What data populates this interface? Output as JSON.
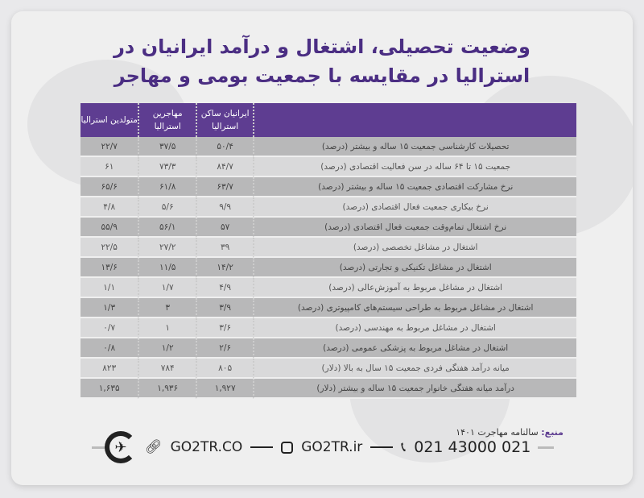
{
  "title": {
    "line1": "وضعیت تحصیلی، اشتغال و درآمد ایرانیان در",
    "line2": "استرالیا در مقایسه با جمعیت بومی و مهاجر"
  },
  "table": {
    "headers": [
      "",
      "ایرانیان ساکن استرالیا",
      "مهاجرین استرالیا",
      "متولدین استرالیا"
    ],
    "rows": [
      [
        "تحصیلات کارشناسی جمعیت ۱۵ ساله و بیشتر (درصد)",
        "۵۰/۴",
        "۳۷/۵",
        "۲۲/۷"
      ],
      [
        "جمعیت ۱۵ تا ۶۴ ساله در سن فعالیت اقتصادی (درصد)",
        "۸۴/۷",
        "۷۳/۳",
        "۶۱"
      ],
      [
        "نرخ مشارکت اقتصادی جمعیت ۱۵ ساله و بیشتر (درصد)",
        "۶۳/۷",
        "۶۱/۸",
        "۶۵/۶"
      ],
      [
        "نرخ بیکاری جمعیت فعال اقتصادی (درصد)",
        "۹/۹",
        "۵/۶",
        "۴/۸"
      ],
      [
        "نرخ اشتغال تمام‌وقت جمعیت فعال اقتصادی (درصد)",
        "۵۷",
        "۵۶/۱",
        "۵۵/۹"
      ],
      [
        "اشتغال در مشاغل تخصصی (درصد)",
        "۳۹",
        "۲۷/۲",
        "۲۲/۵"
      ],
      [
        "اشتغال در مشاغل تکنیکی و تجارتی (درصد)",
        "۱۴/۲",
        "۱۱/۵",
        "۱۳/۶"
      ],
      [
        "اشتغال در مشاغل مربوط به آموزش‌عالی (درصد)",
        "۴/۹",
        "۱/۷",
        "۱/۱"
      ],
      [
        "اشتغال در مشاغل مربوط به طراحی سیستم‌های کامپیوتری (درصد)",
        "۳/۹",
        "۳",
        "۱/۳"
      ],
      [
        "اشتغال در مشاغل مربوط به مهندسی (درصد)",
        "۳/۶",
        "۱",
        "۰/۷"
      ],
      [
        "اشتغال در مشاغل مربوط به پزشکی عمومی (درصد)",
        "۲/۶",
        "۱/۲",
        "۰/۸"
      ],
      [
        "میانه درآمد هفتگی فردی جمعیت ۱۵ سال به بالا (دلار)",
        "۸۰۵",
        "۷۸۴",
        "۸۲۳"
      ],
      [
        "درآمد میانه هفتگی خانوار جمعیت ۱۵ ساله و بیشتر (دلار)",
        "۱,۹۲۷",
        "۱,۹۳۶",
        "۱,۶۳۵"
      ]
    ]
  },
  "source": {
    "label": "منبع:",
    "value": "سالنامه مهاجرت ۱۴۰۱"
  },
  "footer": {
    "website": "GO2TR.CO",
    "instagram": "GO2TR.ir",
    "phone": "021 43000 021"
  },
  "colors": {
    "accent": "#5e3d91",
    "row_dark": "#b8b8b9",
    "row_light": "#d9d9da"
  }
}
